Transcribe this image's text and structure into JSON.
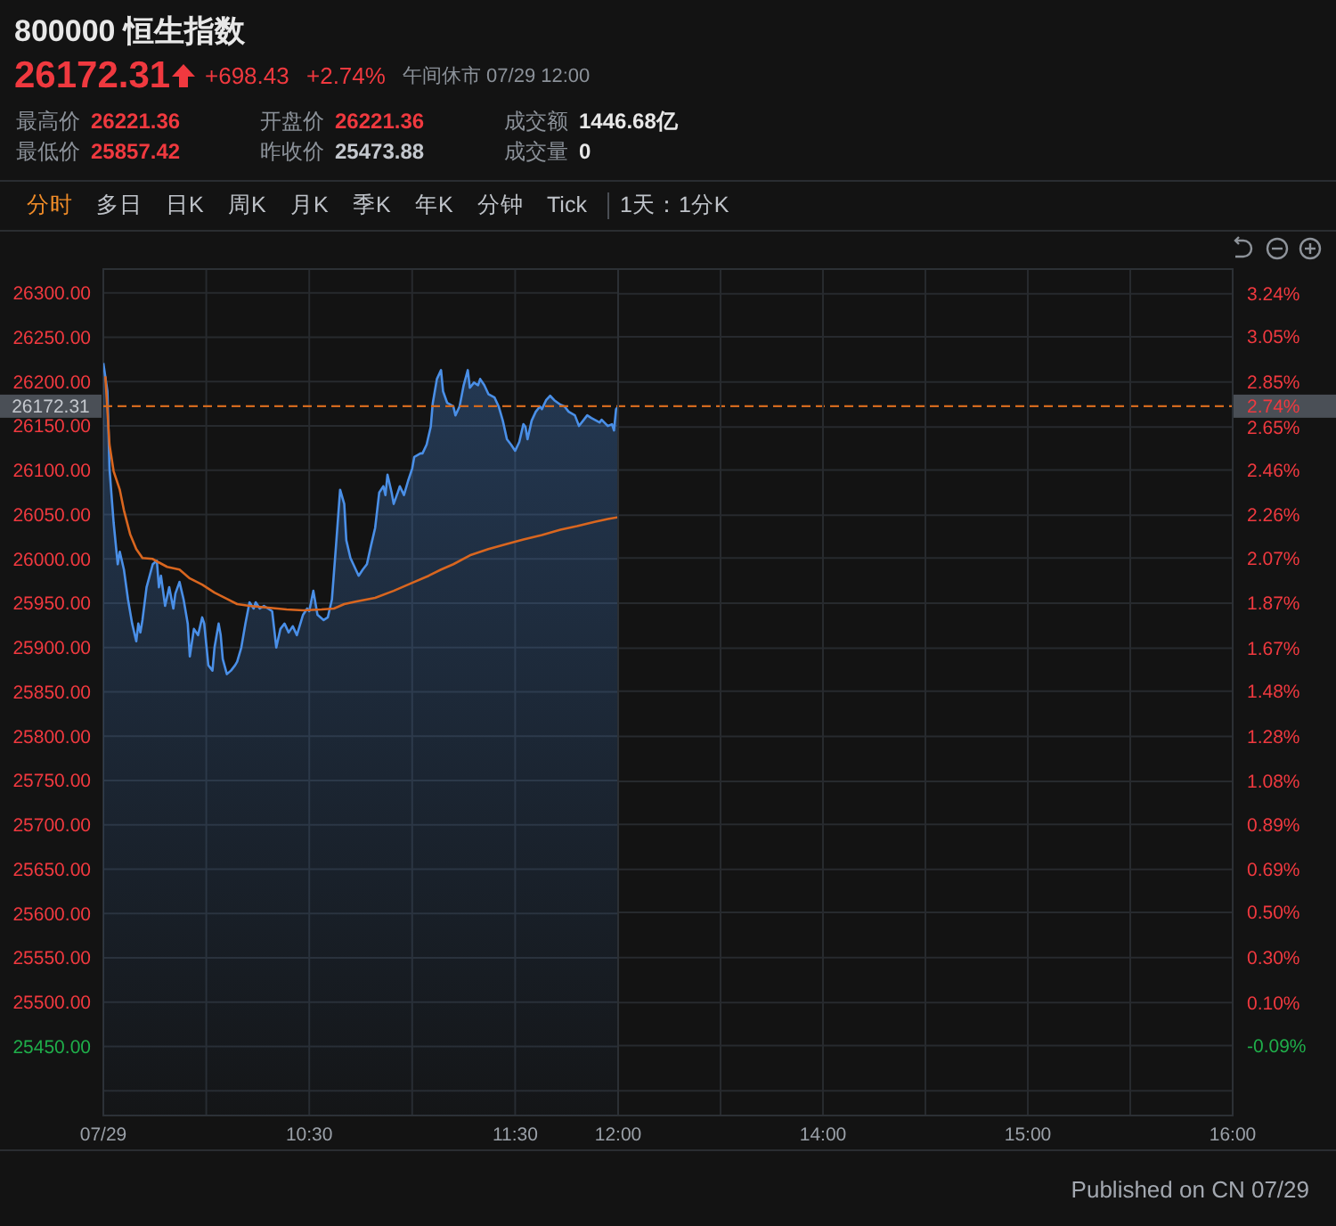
{
  "chart_data": [
    {
      "type": "line",
      "title": "800000 恒生指数",
      "annotations": [
        "26172.31",
        "+698.43",
        "+2.74%",
        "午间休市 07/29 12:00",
        "最高价",
        "26221.36",
        "开盘价",
        "26221.36",
        "成交额",
        "1446.68亿",
        "最低价",
        "25857.42",
        "昨收价",
        "25473.88",
        "成交量",
        "0",
        "分时",
        "多日",
        "日K",
        "周K",
        "月K",
        "季K",
        "年K",
        "分钟",
        "Tick",
        "1天：1分K",
        "Published on CN 07/29"
      ],
      "xlim": [
        9.5,
        12
      ],
      "xticks": [
        {
          "value": 9.5,
          "label": "07/29"
        },
        {
          "value": 10,
          "label": null
        },
        {
          "value": 10.5,
          "label": "10:30"
        },
        {
          "value": 11,
          "label": null
        },
        {
          "value": 11.5,
          "label": "11:30"
        },
        {
          "value": 12,
          "label": "12:00"
        }
      ],
      "ylim": [
        25372,
        26327
      ],
      "yticks": [
        {
          "value": 25400,
          "label": null
        },
        {
          "value": 25450,
          "label": "25450.00"
        },
        {
          "value": 25500,
          "label": "25500.00"
        },
        {
          "value": 25550,
          "label": "25550.00"
        },
        {
          "value": 25600,
          "label": "25600.00"
        },
        {
          "value": 25650,
          "label": "25650.00"
        },
        {
          "value": 25700,
          "label": "25700.00"
        },
        {
          "value": 25750,
          "label": "25750.00"
        },
        {
          "value": 25800,
          "label": "25800.00"
        },
        {
          "value": 25850,
          "label": "25850.00"
        },
        {
          "value": 25900,
          "label": "25900.00"
        },
        {
          "value": 25950,
          "label": "25950.00"
        },
        {
          "value": 26000,
          "label": "26000.00"
        },
        {
          "value": 26050,
          "label": "26050.00"
        },
        {
          "value": 26100,
          "label": "26100.00"
        },
        {
          "value": 26150,
          "label": "26150.00"
        },
        {
          "value": 26200,
          "label": "26200.00"
        },
        {
          "value": 26250,
          "label": "26250.00"
        },
        {
          "value": 26300,
          "label": "26300.00"
        }
      ],
      "grid": true,
      "series": [
        {
          "type": "area",
          "color": "#4a8fe7",
          "x": [
            9.5,
            9.52,
            9.53,
            9.55,
            9.57,
            9.58,
            9.6,
            9.62,
            9.64,
            9.66,
            9.67,
            9.68,
            9.69,
            9.71,
            9.74,
            9.76,
            9.77,
            9.78,
            9.8,
            9.82,
            9.84,
            9.85,
            9.87,
            9.89,
            9.91,
            9.92,
            9.94,
            9.96,
            9.98,
            9.99,
            10.01,
            10.03,
            10.04,
            10.06,
            10.07,
            10.08,
            10.1,
            10.12,
            10.14,
            10.15,
            10.17,
            10.19,
            10.21,
            10.23,
            10.24,
            10.26,
            10.28,
            10.3,
            10.32,
            10.34,
            10.36,
            10.38,
            10.4,
            10.42,
            10.44,
            10.47,
            10.49,
            10.5,
            10.52,
            10.54,
            10.57,
            10.59,
            10.61,
            10.63,
            10.65,
            10.67,
            10.68,
            10.7,
            10.72,
            10.74,
            10.76,
            10.78,
            10.8,
            10.82,
            10.84,
            10.86,
            10.87,
            10.88,
            10.9,
            10.91,
            10.93,
            10.94,
            10.96,
            10.98,
            11,
            11.01,
            11.04,
            11.05,
            11.07,
            11.09,
            11.1,
            11.12,
            11.14,
            11.15,
            11.17,
            11.2,
            11.21,
            11.23,
            11.25,
            11.27,
            11.28,
            11.3,
            11.32,
            11.33,
            11.35,
            11.37,
            11.4,
            11.42,
            11.44,
            11.46,
            11.48,
            11.5,
            11.52,
            11.54,
            11.55,
            11.56,
            11.58,
            11.6,
            11.62,
            11.63,
            11.65,
            11.67,
            11.69,
            11.72,
            11.74,
            11.76,
            11.79,
            11.81,
            11.83,
            11.85,
            11.87,
            11.91,
            11.92,
            11.95,
            11.97,
            11.98,
            11.99,
            12
          ],
          "values": [
            26221,
            26189,
            26102,
            26041,
            25994,
            26008,
            25988,
            25954,
            25927,
            25907,
            25927,
            25917,
            25931,
            25968,
            25994,
            25998,
            25968,
            25981,
            25947,
            25968,
            25944,
            25961,
            25974,
            25954,
            25927,
            25890,
            25921,
            25914,
            25934,
            25927,
            25880,
            25874,
            25900,
            25927,
            25914,
            25887,
            25870,
            25874,
            25880,
            25884,
            25900,
            25927,
            25951,
            25944,
            25951,
            25944,
            25947,
            25944,
            25941,
            25900,
            25921,
            25927,
            25917,
            25924,
            25914,
            25937,
            25944,
            25941,
            25964,
            25937,
            25931,
            25934,
            25954,
            26015,
            26078,
            26062,
            26021,
            26001,
            25991,
            25981,
            25988,
            25994,
            26015,
            26035,
            26075,
            26082,
            26072,
            26095,
            26075,
            26062,
            26075,
            26082,
            26072,
            26088,
            26102,
            26115,
            26119,
            26119,
            26129,
            26149,
            26176,
            26203,
            26213,
            26189,
            26176,
            26172,
            26162,
            26172,
            26196,
            26213,
            26193,
            26199,
            26196,
            26203,
            26196,
            26186,
            26182,
            26172,
            26156,
            26135,
            26129,
            26122,
            26132,
            26152,
            26149,
            26135,
            26156,
            26166,
            26172,
            26169,
            26179,
            26184,
            26179,
            26174,
            26172,
            26166,
            26162,
            26150,
            26156,
            26162,
            26159,
            26154,
            26157,
            26150,
            26152,
            26145,
            26169,
            26172
          ]
        },
        {
          "color": "#d9661f",
          "x": [
            9.51,
            9.53,
            9.55,
            9.58,
            9.6,
            9.63,
            9.66,
            9.69,
            9.74,
            9.77,
            9.81,
            9.87,
            9.92,
            9.98,
            10.04,
            10.1,
            10.15,
            10.21,
            10.3,
            10.39,
            10.47,
            10.56,
            10.62,
            10.67,
            10.73,
            10.82,
            10.91,
            10.99,
            11.08,
            11.14,
            11.2,
            11.28,
            11.37,
            11.46,
            11.54,
            11.63,
            11.72,
            11.8,
            11.89,
            11.95,
            12
          ],
          "values": [
            26206,
            26129,
            26099,
            26078,
            26055,
            26028,
            26011,
            26001,
            26000,
            25996,
            25991,
            25988,
            25978,
            25971,
            25962,
            25955,
            25949,
            25947,
            25945,
            25943,
            25942,
            25943,
            25944,
            25949,
            25952,
            25956,
            25964,
            25972,
            25981,
            25988,
            25994,
            26004,
            26011,
            26017,
            26022,
            26027,
            26033,
            26037,
            26042,
            26045,
            26047
          ]
        }
      ],
      "ref_lines": [
        {
          "axis": "y",
          "value": 26172.31,
          "label": "26172.31",
          "color": "#d2691e",
          "line_style": "dashed"
        }
      ]
    },
    {
      "type": "line",
      "xlim": [
        13,
        16
      ],
      "xticks": [
        {
          "value": 13,
          "label": null
        },
        {
          "value": 13.5,
          "label": null
        },
        {
          "value": 14,
          "label": "14:00"
        },
        {
          "value": 14.5,
          "label": null
        },
        {
          "value": 15,
          "label": "15:00"
        },
        {
          "value": 15.5,
          "label": null
        },
        {
          "value": 16,
          "label": "16:00"
        }
      ],
      "ylim": [
        25372,
        26327
      ],
      "y2lim": [
        -0.4,
        3.35
      ],
      "y2ticks": [
        {
          "value": -0.29,
          "label": null
        },
        {
          "value": -0.09,
          "label": "-0.09%"
        },
        {
          "value": 0.1,
          "label": "0.10%"
        },
        {
          "value": 0.3,
          "label": "0.30%"
        },
        {
          "value": 0.5,
          "label": "0.50%"
        },
        {
          "value": 0.69,
          "label": "0.69%"
        },
        {
          "value": 0.89,
          "label": "0.89%"
        },
        {
          "value": 1.08,
          "label": "1.08%"
        },
        {
          "value": 1.28,
          "label": "1.28%"
        },
        {
          "value": 1.48,
          "label": "1.48%"
        },
        {
          "value": 1.67,
          "label": "1.67%"
        },
        {
          "value": 1.87,
          "label": "1.87%"
        },
        {
          "value": 2.07,
          "label": "2.07%"
        },
        {
          "value": 2.26,
          "label": "2.26%"
        },
        {
          "value": 2.46,
          "label": "2.46%"
        },
        {
          "value": 2.65,
          "label": "2.65%"
        },
        {
          "value": 2.85,
          "label": "2.85%"
        },
        {
          "value": 3.05,
          "label": "3.05%"
        },
        {
          "value": 3.24,
          "label": "3.24%"
        }
      ],
      "grid": true,
      "annotations": [
        {
          "text": "2.74%",
          "x": 16,
          "y": 26172.31
        }
      ]
    }
  ]
}
